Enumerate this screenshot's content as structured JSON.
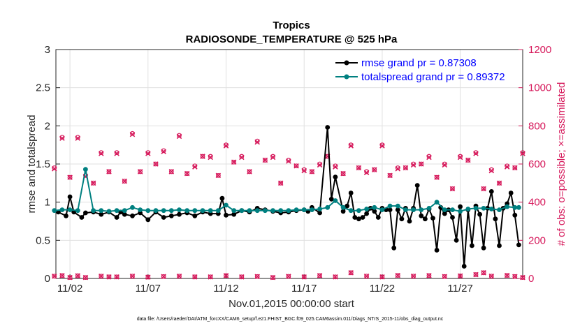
{
  "chart_data": {
    "type": "line",
    "title": "Tropics",
    "subtitle": "RADIOSONDE_TEMPERATURE @ 525 hPa",
    "xlabel": "Nov.01,2015 00:00:00 start",
    "ylabel_left": "rmse and totalspread",
    "ylabel_right": "# of obs: o=possible; ×=assimilated",
    "footer": "data file: /Users/raeder/DAI/ATM_forcXX/CAM6_setup/f.e21.FHIST_BGC.f09_025.CAM6assim.011/Diags_NTrS_2015-11/obs_diag_output.nc",
    "x_tick_labels": [
      "11/02",
      "11/07",
      "11/12",
      "11/17",
      "11/22",
      "11/27"
    ],
    "x_tick_values": [
      2,
      7,
      12,
      17,
      22,
      27
    ],
    "xlim": [
      1.1,
      31.0
    ],
    "ylim_left": [
      0,
      3
    ],
    "ylim_right": [
      0,
      1200
    ],
    "y_ticks_left": [
      "0",
      "0.5",
      "1",
      "1.5",
      "2",
      "2.5",
      "3"
    ],
    "y_ticks_right": [
      "0",
      "200",
      "400",
      "600",
      "800",
      "1000",
      "1200"
    ],
    "grid": true,
    "legend_position": "top-right",
    "colors": {
      "rmse": "#000000",
      "spread": "#008080",
      "obs": "#d6195b",
      "legend_text": "#0000ff"
    },
    "series": [
      {
        "name": "rmse grand pr = 0.87308",
        "x": [
          1.25,
          1.75,
          2.0,
          2.25,
          2.75,
          3.0,
          3.5,
          4.0,
          4.5,
          5.0,
          5.25,
          5.5,
          6.0,
          6.5,
          7.0,
          7.5,
          8.0,
          8.5,
          9.0,
          9.5,
          10.0,
          10.5,
          11.0,
          11.5,
          11.75,
          12.0,
          12.5,
          13.0,
          13.5,
          14.0,
          14.5,
          15.0,
          15.5,
          16.0,
          16.5,
          17.0,
          17.25,
          17.5,
          18.0,
          18.5,
          18.75,
          19.0,
          19.5,
          19.75,
          20.0,
          20.25,
          20.5,
          20.75,
          21.0,
          21.25,
          21.5,
          21.75,
          22.0,
          22.25,
          22.5,
          22.75,
          23.0,
          23.25,
          23.5,
          23.75,
          24.0,
          24.25,
          24.5,
          24.75,
          25.0,
          25.25,
          25.5,
          25.75,
          26.0,
          26.25,
          26.5,
          26.75,
          27.0,
          27.25,
          27.5,
          27.75,
          28.0,
          28.25,
          28.5,
          28.75,
          29.0,
          29.25,
          29.5,
          29.75,
          30.0,
          30.25,
          30.5,
          30.75
        ],
        "values": [
          0.87,
          0.82,
          1.07,
          0.87,
          0.8,
          0.86,
          0.87,
          0.84,
          0.87,
          0.8,
          0.87,
          0.84,
          0.82,
          0.86,
          0.77,
          0.87,
          0.8,
          0.82,
          0.84,
          0.86,
          0.82,
          0.87,
          0.85,
          0.85,
          1.05,
          0.83,
          0.84,
          0.89,
          0.87,
          0.92,
          0.9,
          0.88,
          0.86,
          0.87,
          0.89,
          0.9,
          0.88,
          0.93,
          0.86,
          1.98,
          1.04,
          1.33,
          0.88,
          0.95,
          1.12,
          0.8,
          0.78,
          0.8,
          0.85,
          0.92,
          0.88,
          0.8,
          0.92,
          0.9,
          0.9,
          0.4,
          0.9,
          0.78,
          0.92,
          0.75,
          0.92,
          1.22,
          0.82,
          0.78,
          0.91,
          0.79,
          0.37,
          0.93,
          0.85,
          0.9,
          0.8,
          0.5,
          0.94,
          0.16,
          0.9,
          0.43,
          0.95,
          0.84,
          0.4,
          0.92,
          1.14,
          0.78,
          0.43,
          0.92,
          0.98,
          1.12,
          0.83,
          0.44
        ],
        "line_width": 2
      },
      {
        "name": "totalspread grand pr = 0.89372",
        "x": [
          1.0,
          1.5,
          2.0,
          2.5,
          3.0,
          3.5,
          4.0,
          4.5,
          5.0,
          5.5,
          6.0,
          6.5,
          7.0,
          7.5,
          8.0,
          8.5,
          9.0,
          9.5,
          10.0,
          10.5,
          11.0,
          11.5,
          12.0,
          12.5,
          13.0,
          13.5,
          14.0,
          14.5,
          15.0,
          15.5,
          16.0,
          16.5,
          17.0,
          17.5,
          18.0,
          18.5,
          19.0,
          19.5,
          20.0,
          20.5,
          21.0,
          21.5,
          22.0,
          22.5,
          23.0,
          23.5,
          24.0,
          24.5,
          25.0,
          25.5,
          26.0,
          26.5,
          27.0,
          27.5,
          28.0,
          28.5,
          29.0,
          29.5,
          30.0,
          30.5,
          30.75
        ],
        "values": [
          0.89,
          0.9,
          0.9,
          0.89,
          1.43,
          0.89,
          0.89,
          0.88,
          0.89,
          0.89,
          0.93,
          0.9,
          0.89,
          0.89,
          0.89,
          0.89,
          0.9,
          0.89,
          0.89,
          0.89,
          0.89,
          0.89,
          0.96,
          0.89,
          0.89,
          0.89,
          0.89,
          0.89,
          0.89,
          0.89,
          0.89,
          0.9,
          0.9,
          0.9,
          0.91,
          0.93,
          1.02,
          0.93,
          0.89,
          0.89,
          0.91,
          0.93,
          0.9,
          0.95,
          0.95,
          0.9,
          0.9,
          0.9,
          0.92,
          1.0,
          0.9,
          0.9,
          0.88,
          0.91,
          0.92,
          0.92,
          0.91,
          0.9,
          0.94,
          0.93,
          0.93
        ],
        "line_width": 2
      }
    ],
    "obs_counts": {
      "name": "# of obs",
      "x": [
        1.0,
        1.5,
        2.0,
        2.5,
        3.0,
        3.5,
        4.0,
        4.5,
        5.0,
        5.5,
        6.0,
        6.5,
        7.0,
        7.5,
        8.0,
        8.5,
        9.0,
        9.5,
        10.0,
        10.5,
        11.0,
        11.5,
        12.0,
        12.5,
        13.0,
        13.5,
        14.0,
        14.5,
        15.0,
        15.5,
        16.0,
        16.5,
        17.0,
        17.5,
        18.0,
        18.5,
        19.0,
        19.5,
        20.0,
        20.5,
        21.0,
        21.5,
        22.0,
        22.5,
        23.0,
        23.5,
        24.0,
        24.5,
        25.0,
        25.5,
        26.0,
        26.5,
        27.0,
        27.5,
        28.0,
        28.5,
        29.0,
        29.5,
        30.0,
        30.5,
        31.0
      ],
      "high_possible": [
        580,
        740,
        null,
        740,
        540,
        null,
        660,
        null,
        660,
        null,
        760,
        null,
        660,
        null,
        670,
        null,
        750,
        null,
        590,
        null,
        640,
        null,
        700,
        null,
        640,
        null,
        720,
        null,
        640,
        null,
        620,
        null,
        570,
        null,
        600,
        null,
        590,
        null,
        700,
        null,
        560,
        null,
        700,
        null,
        580,
        null,
        600,
        null,
        640,
        null,
        600,
        null,
        640,
        null,
        660,
        null,
        570,
        null,
        590,
        null,
        660
      ],
      "high_assimilated": [
        575,
        735,
        null,
        735,
        535,
        null,
        655,
        null,
        655,
        null,
        755,
        null,
        655,
        null,
        665,
        null,
        745,
        null,
        585,
        null,
        635,
        null,
        695,
        null,
        635,
        null,
        715,
        null,
        635,
        null,
        615,
        null,
        565,
        null,
        595,
        null,
        585,
        null,
        695,
        null,
        555,
        null,
        695,
        null,
        575,
        null,
        595,
        null,
        635,
        null,
        595,
        null,
        635,
        null,
        655,
        null,
        565,
        null,
        585,
        null,
        655
      ],
      "mid_possible": [
        null,
        null,
        530,
        null,
        null,
        500,
        null,
        560,
        null,
        510,
        null,
        560,
        null,
        600,
        null,
        560,
        null,
        550,
        null,
        640,
        null,
        540,
        null,
        610,
        null,
        560,
        null,
        620,
        null,
        500,
        null,
        590,
        null,
        560,
        null,
        640,
        null,
        550,
        null,
        580,
        null,
        570,
        null,
        540,
        null,
        580,
        null,
        600,
        null,
        530,
        null,
        470,
        null,
        620,
        null,
        470,
        null,
        500,
        null,
        580,
        null
      ],
      "low": [
        [
          1.0,
          12
        ],
        [
          1.5,
          15
        ],
        [
          2.0,
          5
        ],
        [
          2.5,
          14
        ],
        [
          3.0,
          5
        ],
        [
          4.0,
          12
        ],
        [
          4.5,
          8
        ],
        [
          5.0,
          8
        ],
        [
          6.0,
          12
        ],
        [
          7.0,
          7
        ],
        [
          8.0,
          10
        ],
        [
          9.0,
          12
        ],
        [
          10.0,
          8
        ],
        [
          11.0,
          8
        ],
        [
          12.0,
          15
        ],
        [
          13.0,
          8
        ],
        [
          14.0,
          10
        ],
        [
          15.0,
          5
        ],
        [
          16.0,
          11
        ],
        [
          17.0,
          8
        ],
        [
          18.0,
          15
        ],
        [
          19.0,
          8
        ],
        [
          20.0,
          30
        ],
        [
          21.0,
          12
        ],
        [
          22.0,
          8
        ],
        [
          23.0,
          16
        ],
        [
          24.0,
          12
        ],
        [
          25.0,
          15
        ],
        [
          26.0,
          10
        ],
        [
          27.0,
          13
        ],
        [
          28.0,
          20
        ],
        [
          28.5,
          30
        ],
        [
          29.0,
          12
        ],
        [
          30.0,
          16
        ],
        [
          30.5,
          10
        ],
        [
          31.0,
          5
        ]
      ],
      "low_note": "pairs are [day, count]"
    }
  }
}
